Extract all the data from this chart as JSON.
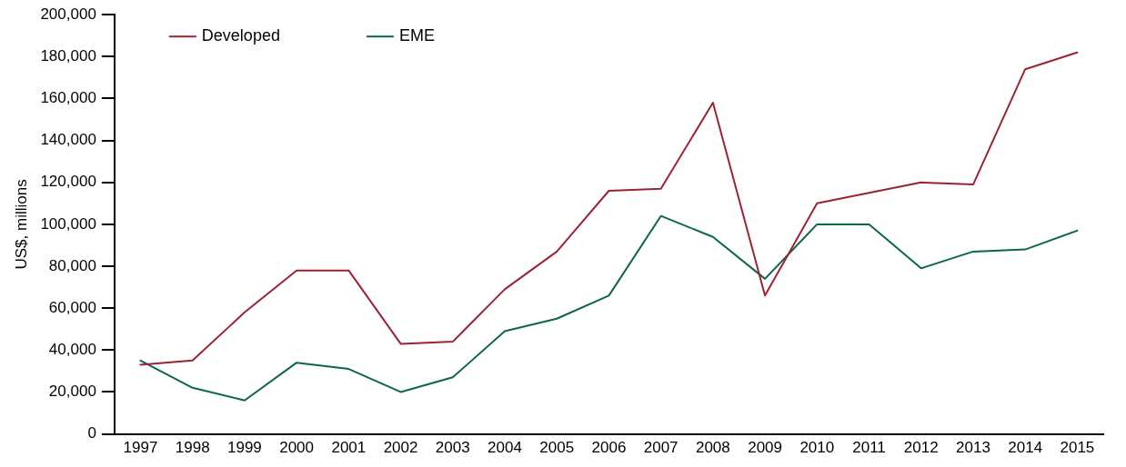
{
  "chart_data": {
    "type": "line",
    "ylabel": "US$, millions",
    "categories": [
      "1997",
      "1998",
      "1999",
      "2000",
      "2001",
      "2002",
      "2003",
      "2004",
      "2005",
      "2006",
      "2007",
      "2008",
      "2009",
      "2010",
      "2011",
      "2012",
      "2013",
      "2014",
      "2015"
    ],
    "series": [
      {
        "name": "Developed",
        "color": "#9b2335",
        "values": [
          33000,
          35000,
          58000,
          78000,
          78000,
          43000,
          44000,
          69000,
          87000,
          116000,
          117000,
          158000,
          66000,
          110000,
          115000,
          120000,
          119000,
          174000,
          182000
        ]
      },
      {
        "name": "EME",
        "color": "#0b6650",
        "values": [
          35000,
          22000,
          16000,
          34000,
          31000,
          20000,
          27000,
          49000,
          55000,
          66000,
          104000,
          94000,
          74000,
          100000,
          100000,
          79000,
          87000,
          88000,
          97000
        ]
      }
    ],
    "ylim": [
      0,
      200000
    ],
    "yticks": [
      {
        "value": 0,
        "label": "0"
      },
      {
        "value": 20000,
        "label": "20,000"
      },
      {
        "value": 40000,
        "label": "40,000"
      },
      {
        "value": 60000,
        "label": "60,000"
      },
      {
        "value": 80000,
        "label": "80,000"
      },
      {
        "value": 100000,
        "label": "100,000"
      },
      {
        "value": 120000,
        "label": "120,000"
      },
      {
        "value": 140000,
        "label": "140,000"
      },
      {
        "value": 160000,
        "label": "160,000"
      },
      {
        "value": 180000,
        "label": "180,000"
      },
      {
        "value": 200000,
        "label": "200,000"
      }
    ],
    "grid": false,
    "legend": "top left",
    "marker": "none",
    "line_style": "solid"
  }
}
